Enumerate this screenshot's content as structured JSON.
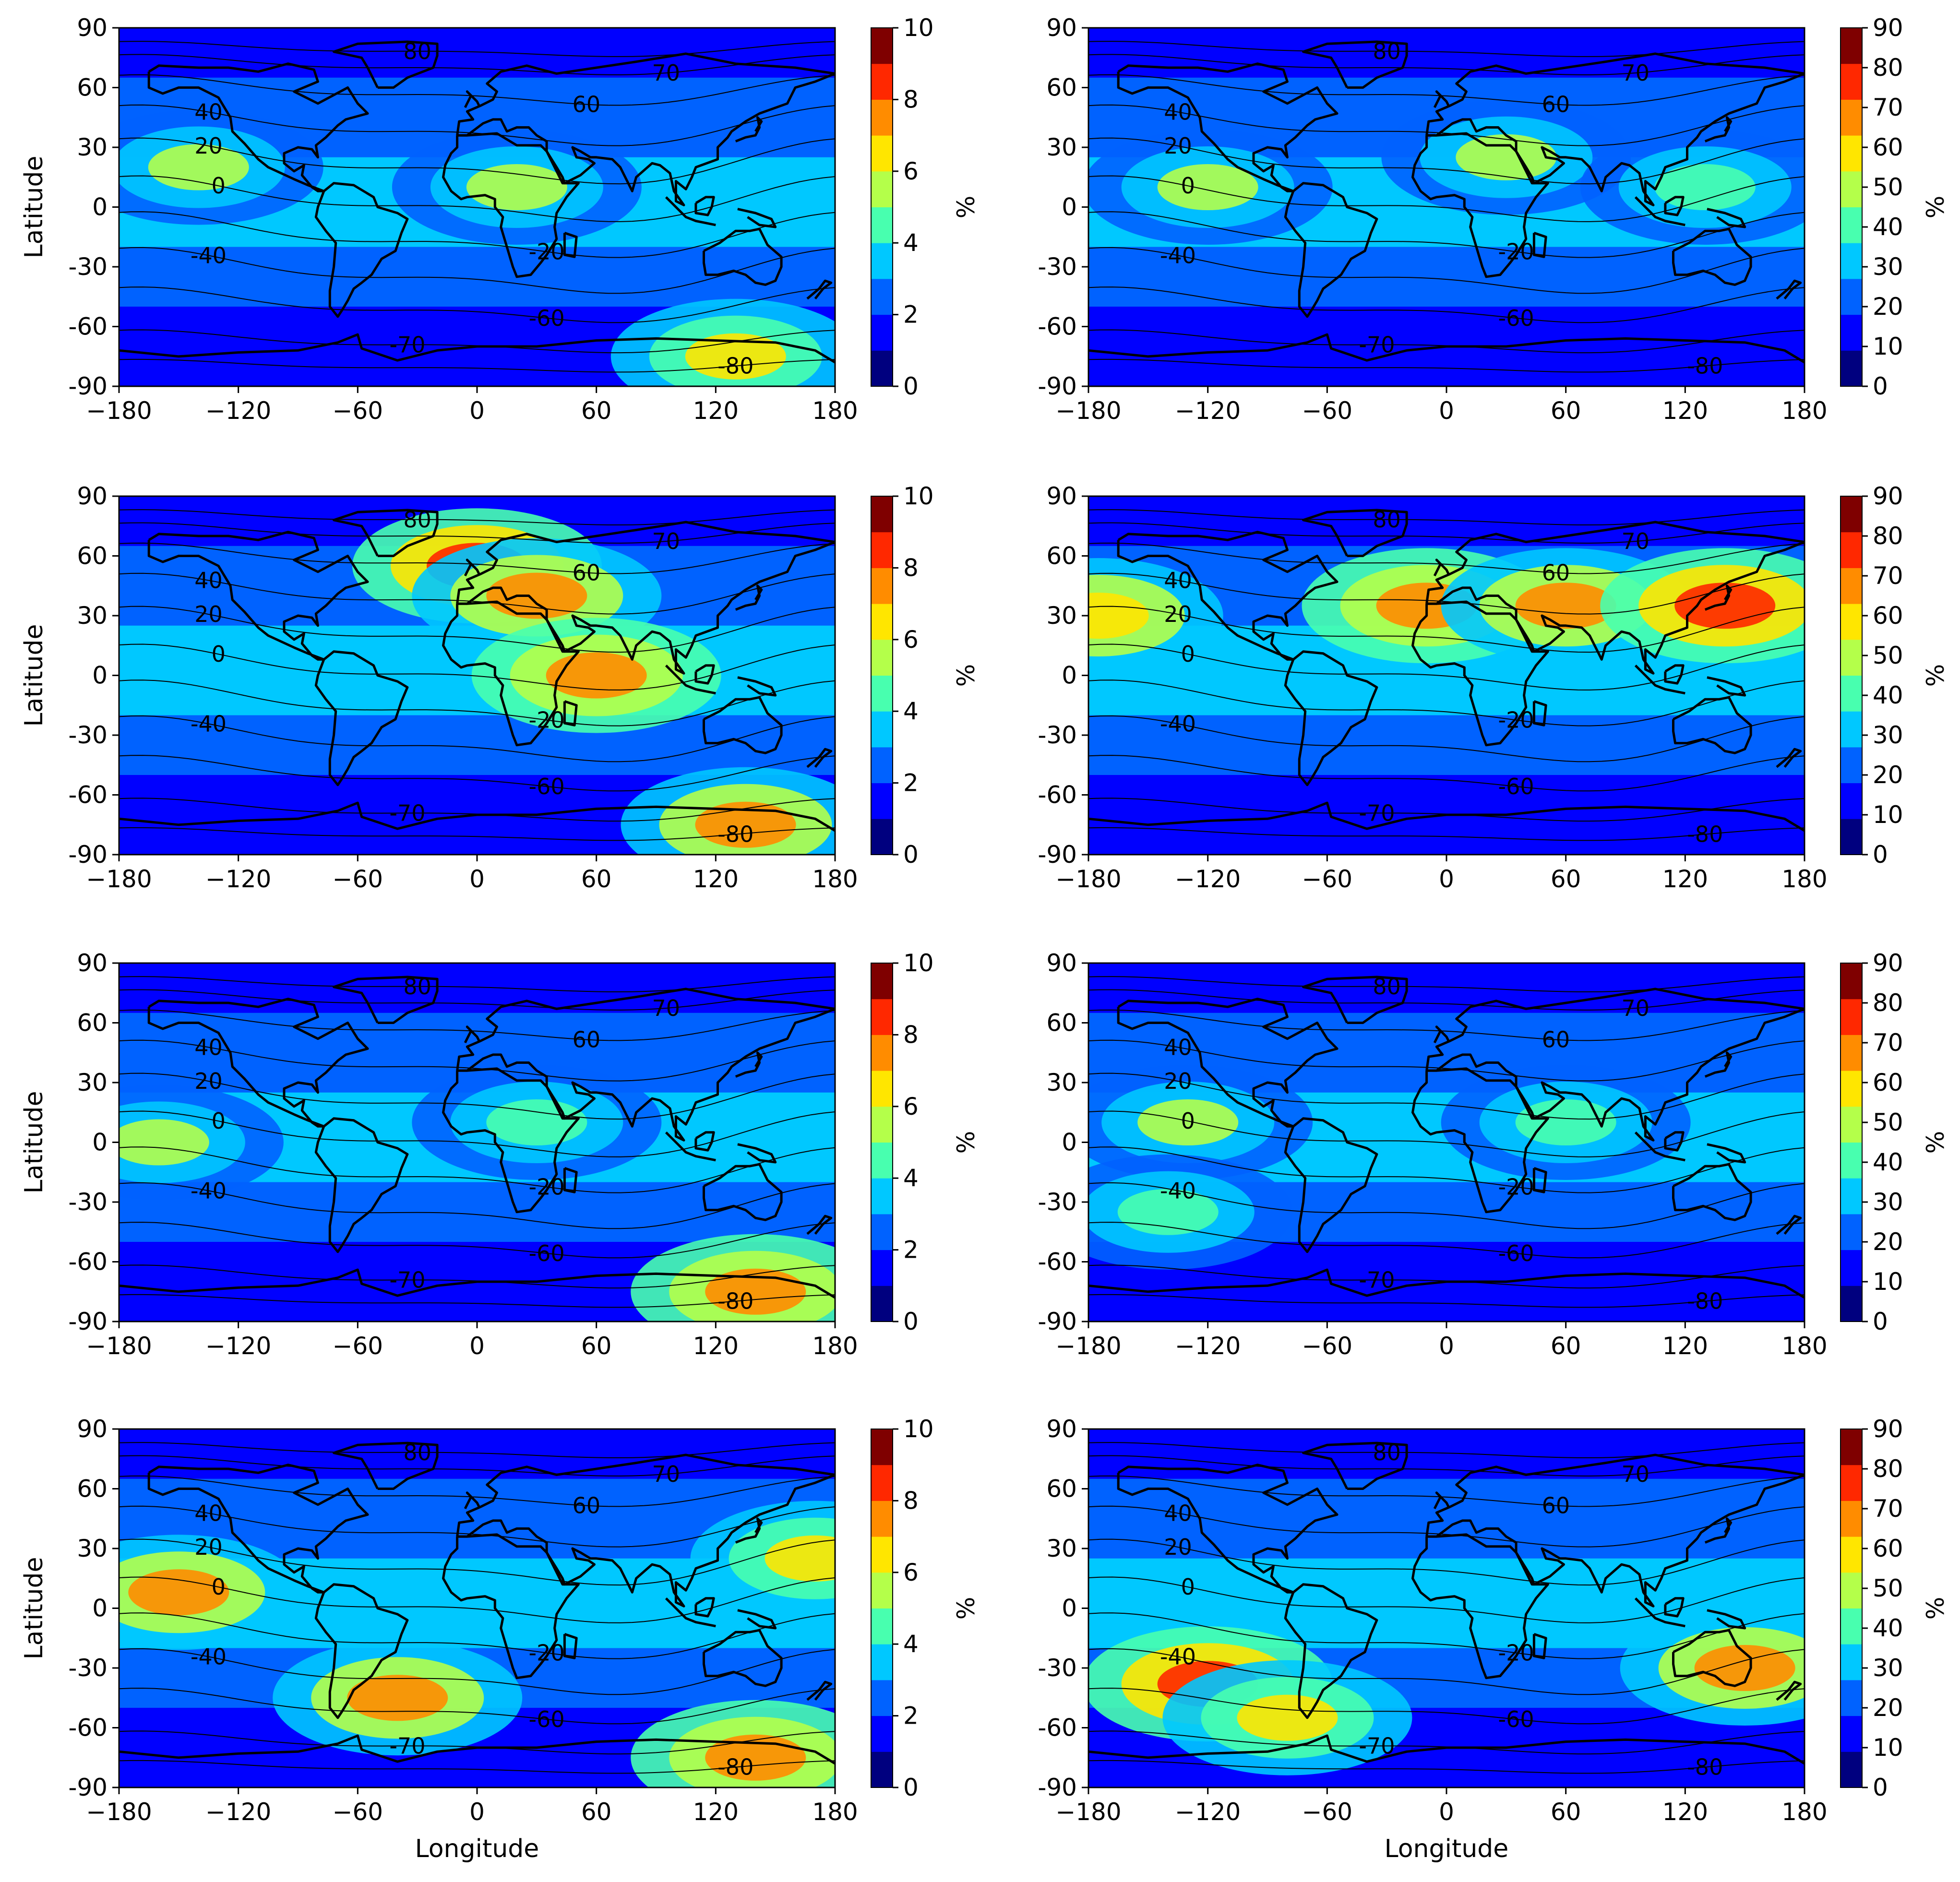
{
  "figure": {
    "xlabel": "Longitude",
    "ylabel": "Latitude",
    "colorbar_label": "%",
    "x_ticks": [
      "−180",
      "−120",
      "−60",
      "0",
      "60",
      "120",
      "180"
    ],
    "y_ticks": [
      "90",
      "60",
      "30",
      "0",
      "-30",
      "-60",
      "-90"
    ]
  },
  "colormap": [
    "#00007f",
    "#0000ff",
    "#0062ff",
    "#00c8ff",
    "#48ffaf",
    "#b4ff4a",
    "#ffe600",
    "#ff8c00",
    "#ff2800",
    "#7f0000"
  ],
  "colors": {
    "coast": "#000000",
    "contour": "#000000"
  },
  "contour_labels": [
    "80",
    "70",
    "60",
    "40",
    "20",
    "0",
    "-20",
    "-40",
    "-60",
    "-70",
    "-80"
  ],
  "chart_data": [
    {
      "type": "heatmap",
      "panel": "row1-left",
      "xlim": [
        -180,
        180
      ],
      "ylim": [
        -90,
        90
      ],
      "colorbar": {
        "range": [
          0,
          10
        ],
        "ticks": [
          "0",
          "2",
          "4",
          "6",
          "8",
          "10"
        ],
        "label": "%"
      },
      "hotspots": [
        {
          "lon": -140,
          "lat": 20,
          "value": 5
        },
        {
          "lon": 20,
          "lat": 10,
          "value": 5
        },
        {
          "lon": 130,
          "lat": -75,
          "value": 6.5
        }
      ]
    },
    {
      "type": "heatmap",
      "panel": "row1-right",
      "xlim": [
        -180,
        180
      ],
      "ylim": [
        -90,
        90
      ],
      "colorbar": {
        "range": [
          0,
          90
        ],
        "ticks": [
          "0",
          "10",
          "20",
          "30",
          "40",
          "50",
          "60",
          "70",
          "80",
          "90"
        ],
        "label": "%"
      },
      "hotspots": [
        {
          "lon": -120,
          "lat": 10,
          "value": 45
        },
        {
          "lon": 30,
          "lat": 25,
          "value": 45
        },
        {
          "lon": 130,
          "lat": 10,
          "value": 42
        }
      ]
    },
    {
      "type": "heatmap",
      "panel": "row2-left",
      "xlim": [
        -180,
        180
      ],
      "ylim": [
        -90,
        90
      ],
      "colorbar": {
        "range": [
          0,
          10
        ],
        "ticks": [
          "0",
          "2",
          "4",
          "6",
          "8",
          "10"
        ],
        "label": "%"
      },
      "hotspots": [
        {
          "lon": 0,
          "lat": 55,
          "value": 8.5
        },
        {
          "lon": 30,
          "lat": 40,
          "value": 7
        },
        {
          "lon": 60,
          "lat": 0,
          "value": 7.5
        },
        {
          "lon": 135,
          "lat": -75,
          "value": 7
        }
      ]
    },
    {
      "type": "heatmap",
      "panel": "row2-right",
      "xlim": [
        -180,
        180
      ],
      "ylim": [
        -90,
        90
      ],
      "colorbar": {
        "range": [
          0,
          90
        ],
        "ticks": [
          "0",
          "10",
          "20",
          "30",
          "40",
          "50",
          "60",
          "70",
          "80",
          "90"
        ],
        "label": "%"
      },
      "hotspots": [
        {
          "lon": -10,
          "lat": 35,
          "value": 70
        },
        {
          "lon": 60,
          "lat": 35,
          "value": 65
        },
        {
          "lon": 140,
          "lat": 35,
          "value": 75
        },
        {
          "lon": -175,
          "lat": 30,
          "value": 60
        }
      ]
    },
    {
      "type": "heatmap",
      "panel": "row3-left",
      "xlim": [
        -180,
        180
      ],
      "ylim": [
        -90,
        90
      ],
      "colorbar": {
        "range": [
          0,
          10
        ],
        "ticks": [
          "0",
          "2",
          "4",
          "6",
          "8",
          "10"
        ],
        "label": "%"
      },
      "hotspots": [
        {
          "lon": -160,
          "lat": 0,
          "value": 5
        },
        {
          "lon": 140,
          "lat": -75,
          "value": 7.5
        },
        {
          "lon": 30,
          "lat": 10,
          "value": 4.5
        }
      ]
    },
    {
      "type": "heatmap",
      "panel": "row3-right",
      "xlim": [
        -180,
        180
      ],
      "ylim": [
        -90,
        90
      ],
      "colorbar": {
        "range": [
          0,
          90
        ],
        "ticks": [
          "0",
          "10",
          "20",
          "30",
          "40",
          "50",
          "60",
          "70",
          "80",
          "90"
        ],
        "label": "%"
      },
      "hotspots": [
        {
          "lon": -130,
          "lat": 10,
          "value": 45
        },
        {
          "lon": 60,
          "lat": 10,
          "value": 40
        },
        {
          "lon": -140,
          "lat": -35,
          "value": 40
        }
      ]
    },
    {
      "type": "heatmap",
      "panel": "row4-left",
      "xlim": [
        -180,
        180
      ],
      "ylim": [
        -90,
        90
      ],
      "colorbar": {
        "range": [
          0,
          10
        ],
        "ticks": [
          "0",
          "2",
          "4",
          "6",
          "8",
          "10"
        ],
        "label": "%"
      },
      "hotspots": [
        {
          "lon": -150,
          "lat": 8,
          "value": 7
        },
        {
          "lon": -40,
          "lat": -45,
          "value": 7
        },
        {
          "lon": 170,
          "lat": 25,
          "value": 6.5
        },
        {
          "lon": 140,
          "lat": -75,
          "value": 7.5
        }
      ]
    },
    {
      "type": "heatmap",
      "panel": "row4-right",
      "xlim": [
        -180,
        180
      ],
      "ylim": [
        -90,
        90
      ],
      "colorbar": {
        "range": [
          0,
          90
        ],
        "ticks": [
          "0",
          "10",
          "20",
          "30",
          "40",
          "50",
          "60",
          "70",
          "80",
          "90"
        ],
        "label": "%"
      },
      "hotspots": [
        {
          "lon": -120,
          "lat": -38,
          "value": 75
        },
        {
          "lon": 150,
          "lat": -30,
          "value": 65
        },
        {
          "lon": -80,
          "lat": -55,
          "value": 55
        }
      ]
    }
  ]
}
